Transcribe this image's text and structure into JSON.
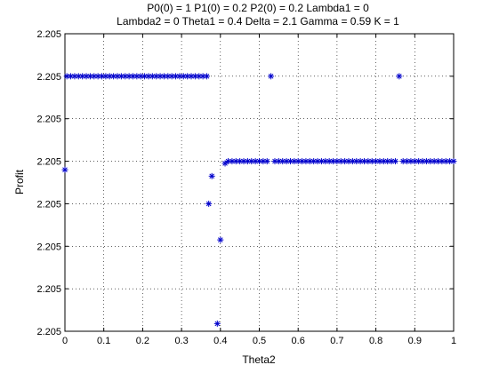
{
  "chart_data": {
    "type": "scatter",
    "title": [
      "P0(0) = 1 P1(0) = 0.2 P2(0) = 0.2 Lambda1 = 0",
      "Lambda2 = 0 Theta1 = 0.4 Delta = 2.1 Gamma = 0.59 K = 1"
    ],
    "xlabel": "Theta2",
    "ylabel": "Profit",
    "xlim": [
      0,
      1
    ],
    "ylim": [
      0,
      7
    ],
    "x_ticks": [
      0,
      0.1,
      0.2,
      0.3,
      0.4,
      0.5,
      0.6,
      0.7,
      0.8,
      0.9,
      1
    ],
    "x_tick_labels": [
      "0",
      "0.1",
      "0.2",
      "0.3",
      "0.4",
      "0.5",
      "0.6",
      "0.7",
      "0.8",
      "0.9",
      "1"
    ],
    "y_ticks": [
      0,
      1,
      2,
      3,
      4,
      5,
      6,
      7
    ],
    "y_tick_labels": [
      "2.205",
      "2.205",
      "2.205",
      "2.205",
      "2.205",
      "2.205",
      "2.205",
      "2.205"
    ],
    "grid": true,
    "marker": "asterisk",
    "marker_color": "#0000cc",
    "series": [
      {
        "segments": [
          {
            "x_start": 0.005,
            "x_end": 0.365,
            "x_step": 0.01,
            "y": 6.0
          },
          {
            "x_start": 0.42,
            "x_end": 0.52,
            "x_step": 0.01,
            "y": 4.0
          },
          {
            "x_start": 0.54,
            "x_end": 0.85,
            "x_step": 0.01,
            "y": 4.0
          },
          {
            "x_start": 0.87,
            "x_end": 1.0,
            "x_step": 0.01,
            "y": 4.0
          }
        ],
        "points": [
          {
            "x": 0.0,
            "y": 3.8
          },
          {
            "x": 0.37,
            "y": 3.0
          },
          {
            "x": 0.378,
            "y": 3.65
          },
          {
            "x": 0.392,
            "y": 0.18
          },
          {
            "x": 0.4,
            "y": 2.15
          },
          {
            "x": 0.412,
            "y": 3.95
          },
          {
            "x": 0.53,
            "y": 6.0
          },
          {
            "x": 0.86,
            "y": 6.0
          }
        ]
      }
    ]
  }
}
